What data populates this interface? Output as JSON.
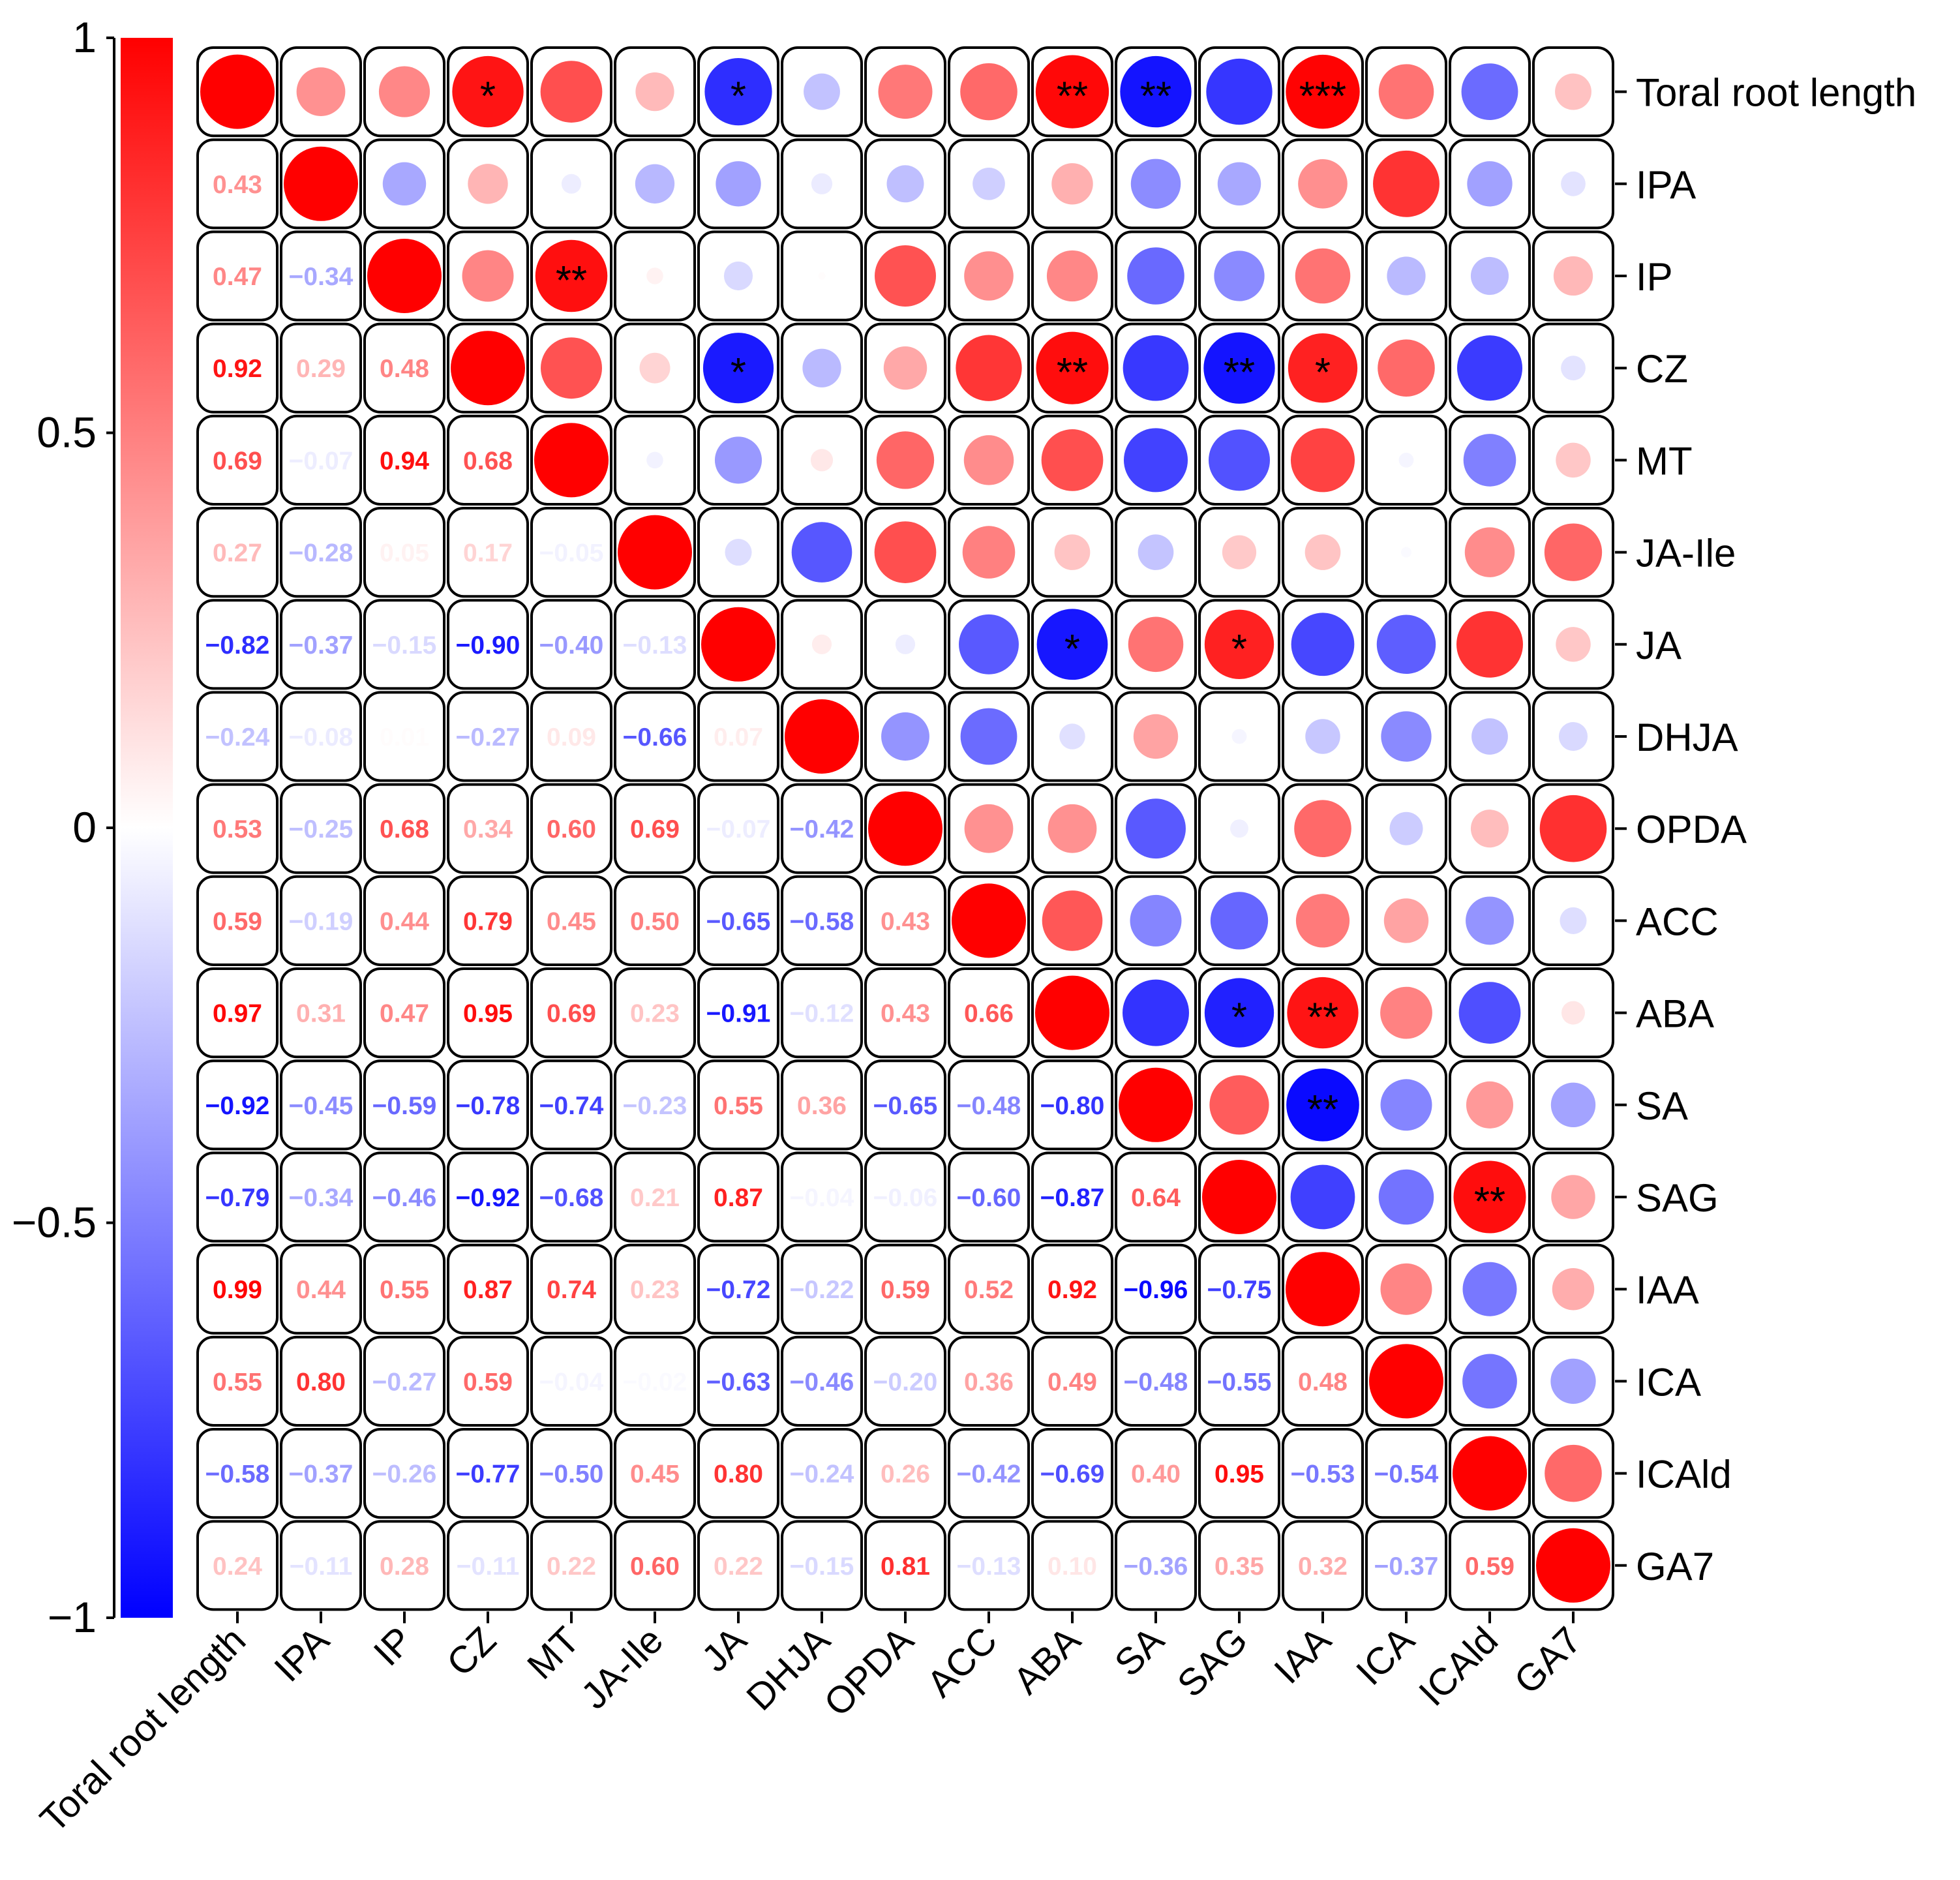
{
  "chart_data": {
    "type": "heatmap",
    "subtype": "correlogram",
    "variables": [
      "Toral root length",
      "IPA",
      "IP",
      "CZ",
      "MT",
      "JA-Ile",
      "JA",
      "DHJA",
      "OPDA",
      "ACC",
      "ABA",
      "SA",
      "SAG",
      "IAA",
      "ICA",
      "ICAld",
      "GA7"
    ],
    "lower_triangle_display": "numbers",
    "upper_triangle_display": "circles",
    "diagonal_value": 1,
    "colorbar": {
      "min": -1,
      "max": 1,
      "ticks": [
        1,
        0.5,
        0,
        -0.5,
        -1
      ],
      "tick_labels": [
        "1",
        "0.5",
        "0",
        "−0.5",
        "−1"
      ],
      "colors": {
        "low": "#0000ff",
        "mid": "#ffffff",
        "high": "#ff0000"
      }
    },
    "correlations": [
      {
        "row": "IPA",
        "col": "Toral root length",
        "value": 0.43,
        "label": "0.43"
      },
      {
        "row": "IP",
        "col": "Toral root length",
        "value": 0.47,
        "label": "0.47"
      },
      {
        "row": "IP",
        "col": "IPA",
        "value": -0.34,
        "label": "−0.34"
      },
      {
        "row": "CZ",
        "col": "Toral root length",
        "value": 0.92,
        "label": "0.92"
      },
      {
        "row": "CZ",
        "col": "IPA",
        "value": 0.29,
        "label": "0.29"
      },
      {
        "row": "CZ",
        "col": "IP",
        "value": 0.48,
        "label": "0.48"
      },
      {
        "row": "MT",
        "col": "Toral root length",
        "value": 0.69,
        "label": "0.69"
      },
      {
        "row": "MT",
        "col": "IPA",
        "value": -0.07,
        "label": "−0.07"
      },
      {
        "row": "MT",
        "col": "IP",
        "value": 0.94,
        "label": "0.94"
      },
      {
        "row": "MT",
        "col": "CZ",
        "value": 0.68,
        "label": "0.68"
      },
      {
        "row": "JA-Ile",
        "col": "Toral root length",
        "value": 0.27,
        "label": "0.27"
      },
      {
        "row": "JA-Ile",
        "col": "IPA",
        "value": -0.28,
        "label": "−0.28"
      },
      {
        "row": "JA-Ile",
        "col": "IP",
        "value": 0.05,
        "label": "0.05"
      },
      {
        "row": "JA-Ile",
        "col": "CZ",
        "value": 0.17,
        "label": "0.17"
      },
      {
        "row": "JA-Ile",
        "col": "MT",
        "value": -0.05,
        "label": "−0.05"
      },
      {
        "row": "JA",
        "col": "Toral root length",
        "value": -0.82,
        "label": "−0.82"
      },
      {
        "row": "JA",
        "col": "IPA",
        "value": -0.37,
        "label": "−0.37"
      },
      {
        "row": "JA",
        "col": "IP",
        "value": -0.15,
        "label": "−0.15"
      },
      {
        "row": "JA",
        "col": "CZ",
        "value": -0.9,
        "label": "−0.90"
      },
      {
        "row": "JA",
        "col": "MT",
        "value": -0.4,
        "label": "−0.40"
      },
      {
        "row": "JA",
        "col": "JA-Ile",
        "value": -0.13,
        "label": "−0.13"
      },
      {
        "row": "DHJA",
        "col": "Toral root length",
        "value": -0.24,
        "label": "−0.24"
      },
      {
        "row": "DHJA",
        "col": "IPA",
        "value": -0.08,
        "label": "−0.08"
      },
      {
        "row": "DHJA",
        "col": "IP",
        "value": 0.01,
        "label": "0.01"
      },
      {
        "row": "DHJA",
        "col": "CZ",
        "value": -0.27,
        "label": "−0.27"
      },
      {
        "row": "DHJA",
        "col": "MT",
        "value": 0.09,
        "label": "0.09"
      },
      {
        "row": "DHJA",
        "col": "JA-Ile",
        "value": -0.66,
        "label": "−0.66"
      },
      {
        "row": "DHJA",
        "col": "JA",
        "value": 0.07,
        "label": "0.07"
      },
      {
        "row": "OPDA",
        "col": "Toral root length",
        "value": 0.53,
        "label": "0.53"
      },
      {
        "row": "OPDA",
        "col": "IPA",
        "value": -0.25,
        "label": "−0.25"
      },
      {
        "row": "OPDA",
        "col": "IP",
        "value": 0.68,
        "label": "0.68"
      },
      {
        "row": "OPDA",
        "col": "CZ",
        "value": 0.34,
        "label": "0.34"
      },
      {
        "row": "OPDA",
        "col": "MT",
        "value": 0.6,
        "label": "0.60"
      },
      {
        "row": "OPDA",
        "col": "JA-Ile",
        "value": 0.69,
        "label": "0.69"
      },
      {
        "row": "OPDA",
        "col": "JA",
        "value": -0.07,
        "label": "−0.07"
      },
      {
        "row": "OPDA",
        "col": "DHJA",
        "value": -0.42,
        "label": "−0.42"
      },
      {
        "row": "ACC",
        "col": "Toral root length",
        "value": 0.59,
        "label": "0.59"
      },
      {
        "row": "ACC",
        "col": "IPA",
        "value": -0.19,
        "label": "−0.19"
      },
      {
        "row": "ACC",
        "col": "IP",
        "value": 0.44,
        "label": "0.44"
      },
      {
        "row": "ACC",
        "col": "CZ",
        "value": 0.79,
        "label": "0.79"
      },
      {
        "row": "ACC",
        "col": "MT",
        "value": 0.45,
        "label": "0.45"
      },
      {
        "row": "ACC",
        "col": "JA-Ile",
        "value": 0.5,
        "label": "0.50"
      },
      {
        "row": "ACC",
        "col": "JA",
        "value": -0.65,
        "label": "−0.65"
      },
      {
        "row": "ACC",
        "col": "DHJA",
        "value": -0.58,
        "label": "−0.58"
      },
      {
        "row": "ACC",
        "col": "OPDA",
        "value": 0.43,
        "label": "0.43"
      },
      {
        "row": "ABA",
        "col": "Toral root length",
        "value": 0.97,
        "label": "0.97"
      },
      {
        "row": "ABA",
        "col": "IPA",
        "value": 0.31,
        "label": "0.31"
      },
      {
        "row": "ABA",
        "col": "IP",
        "value": 0.47,
        "label": "0.47"
      },
      {
        "row": "ABA",
        "col": "CZ",
        "value": 0.95,
        "label": "0.95"
      },
      {
        "row": "ABA",
        "col": "MT",
        "value": 0.69,
        "label": "0.69"
      },
      {
        "row": "ABA",
        "col": "JA-Ile",
        "value": 0.23,
        "label": "0.23"
      },
      {
        "row": "ABA",
        "col": "JA",
        "value": -0.91,
        "label": "−0.91"
      },
      {
        "row": "ABA",
        "col": "DHJA",
        "value": -0.12,
        "label": "−0.12"
      },
      {
        "row": "ABA",
        "col": "OPDA",
        "value": 0.43,
        "label": "0.43"
      },
      {
        "row": "ABA",
        "col": "ACC",
        "value": 0.66,
        "label": "0.66"
      },
      {
        "row": "SA",
        "col": "Toral root length",
        "value": -0.92,
        "label": "−0.92"
      },
      {
        "row": "SA",
        "col": "IPA",
        "value": -0.45,
        "label": "−0.45"
      },
      {
        "row": "SA",
        "col": "IP",
        "value": -0.59,
        "label": "−0.59"
      },
      {
        "row": "SA",
        "col": "CZ",
        "value": -0.78,
        "label": "−0.78"
      },
      {
        "row": "SA",
        "col": "MT",
        "value": -0.74,
        "label": "−0.74"
      },
      {
        "row": "SA",
        "col": "JA-Ile",
        "value": -0.23,
        "label": "−0.23"
      },
      {
        "row": "SA",
        "col": "JA",
        "value": 0.55,
        "label": "0.55"
      },
      {
        "row": "SA",
        "col": "DHJA",
        "value": 0.36,
        "label": "0.36"
      },
      {
        "row": "SA",
        "col": "OPDA",
        "value": -0.65,
        "label": "−0.65"
      },
      {
        "row": "SA",
        "col": "ACC",
        "value": -0.48,
        "label": "−0.48"
      },
      {
        "row": "SA",
        "col": "ABA",
        "value": -0.8,
        "label": "−0.80"
      },
      {
        "row": "SAG",
        "col": "Toral root length",
        "value": -0.79,
        "label": "−0.79"
      },
      {
        "row": "SAG",
        "col": "IPA",
        "value": -0.34,
        "label": "−0.34"
      },
      {
        "row": "SAG",
        "col": "IP",
        "value": -0.46,
        "label": "−0.46"
      },
      {
        "row": "SAG",
        "col": "CZ",
        "value": -0.92,
        "label": "−0.92"
      },
      {
        "row": "SAG",
        "col": "MT",
        "value": -0.68,
        "label": "−0.68"
      },
      {
        "row": "SAG",
        "col": "JA-Ile",
        "value": 0.21,
        "label": "0.21"
      },
      {
        "row": "SAG",
        "col": "JA",
        "value": 0.87,
        "label": "0.87"
      },
      {
        "row": "SAG",
        "col": "DHJA",
        "value": -0.04,
        "label": "−0.04"
      },
      {
        "row": "SAG",
        "col": "OPDA",
        "value": -0.06,
        "label": "−0.06"
      },
      {
        "row": "SAG",
        "col": "ACC",
        "value": -0.6,
        "label": "−0.60"
      },
      {
        "row": "SAG",
        "col": "ABA",
        "value": -0.87,
        "label": "−0.87"
      },
      {
        "row": "SAG",
        "col": "SA",
        "value": 0.64,
        "label": "0.64"
      },
      {
        "row": "IAA",
        "col": "Toral root length",
        "value": 0.99,
        "label": "0.99"
      },
      {
        "row": "IAA",
        "col": "IPA",
        "value": 0.44,
        "label": "0.44"
      },
      {
        "row": "IAA",
        "col": "IP",
        "value": 0.55,
        "label": "0.55"
      },
      {
        "row": "IAA",
        "col": "CZ",
        "value": 0.87,
        "label": "0.87"
      },
      {
        "row": "IAA",
        "col": "MT",
        "value": 0.74,
        "label": "0.74"
      },
      {
        "row": "IAA",
        "col": "JA-Ile",
        "value": 0.23,
        "label": "0.23"
      },
      {
        "row": "IAA",
        "col": "JA",
        "value": -0.72,
        "label": "−0.72"
      },
      {
        "row": "IAA",
        "col": "DHJA",
        "value": -0.22,
        "label": "−0.22"
      },
      {
        "row": "IAA",
        "col": "OPDA",
        "value": 0.59,
        "label": "0.59"
      },
      {
        "row": "IAA",
        "col": "ACC",
        "value": 0.52,
        "label": "0.52"
      },
      {
        "row": "IAA",
        "col": "ABA",
        "value": 0.92,
        "label": "0.92"
      },
      {
        "row": "IAA",
        "col": "SA",
        "value": -0.96,
        "label": "−0.96"
      },
      {
        "row": "IAA",
        "col": "SAG",
        "value": -0.75,
        "label": "−0.75"
      },
      {
        "row": "ICA",
        "col": "Toral root length",
        "value": 0.55,
        "label": "0.55"
      },
      {
        "row": "ICA",
        "col": "IPA",
        "value": 0.8,
        "label": "0.80"
      },
      {
        "row": "ICA",
        "col": "IP",
        "value": -0.27,
        "label": "−0.27"
      },
      {
        "row": "ICA",
        "col": "CZ",
        "value": 0.59,
        "label": "0.59"
      },
      {
        "row": "ICA",
        "col": "MT",
        "value": -0.04,
        "label": "−0.04"
      },
      {
        "row": "ICA",
        "col": "JA-Ile",
        "value": -0.02,
        "label": "−0.02"
      },
      {
        "row": "ICA",
        "col": "JA",
        "value": -0.63,
        "label": "−0.63"
      },
      {
        "row": "ICA",
        "col": "DHJA",
        "value": -0.46,
        "label": "−0.46"
      },
      {
        "row": "ICA",
        "col": "OPDA",
        "value": -0.2,
        "label": "−0.20"
      },
      {
        "row": "ICA",
        "col": "ACC",
        "value": 0.36,
        "label": "0.36"
      },
      {
        "row": "ICA",
        "col": "ABA",
        "value": 0.49,
        "label": "0.49"
      },
      {
        "row": "ICA",
        "col": "SA",
        "value": -0.48,
        "label": "−0.48"
      },
      {
        "row": "ICA",
        "col": "SAG",
        "value": -0.55,
        "label": "−0.55"
      },
      {
        "row": "ICA",
        "col": "IAA",
        "value": 0.48,
        "label": "0.48"
      },
      {
        "row": "ICAld",
        "col": "Toral root length",
        "value": -0.58,
        "label": "−0.58"
      },
      {
        "row": "ICAld",
        "col": "IPA",
        "value": -0.37,
        "label": "−0.37"
      },
      {
        "row": "ICAld",
        "col": "IP",
        "value": -0.26,
        "label": "−0.26"
      },
      {
        "row": "ICAld",
        "col": "CZ",
        "value": -0.77,
        "label": "−0.77"
      },
      {
        "row": "ICAld",
        "col": "MT",
        "value": -0.5,
        "label": "−0.50"
      },
      {
        "row": "ICAld",
        "col": "JA-Ile",
        "value": 0.45,
        "label": "0.45"
      },
      {
        "row": "ICAld",
        "col": "JA",
        "value": 0.8,
        "label": "0.80"
      },
      {
        "row": "ICAld",
        "col": "DHJA",
        "value": -0.24,
        "label": "−0.24"
      },
      {
        "row": "ICAld",
        "col": "OPDA",
        "value": 0.26,
        "label": "0.26"
      },
      {
        "row": "ICAld",
        "col": "ACC",
        "value": -0.42,
        "label": "−0.42"
      },
      {
        "row": "ICAld",
        "col": "ABA",
        "value": -0.69,
        "label": "−0.69"
      },
      {
        "row": "ICAld",
        "col": "SA",
        "value": 0.4,
        "label": "0.40"
      },
      {
        "row": "ICAld",
        "col": "SAG",
        "value": 0.95,
        "label": "0.95"
      },
      {
        "row": "ICAld",
        "col": "IAA",
        "value": -0.53,
        "label": "−0.53"
      },
      {
        "row": "ICAld",
        "col": "ICA",
        "value": -0.54,
        "label": "−0.54"
      },
      {
        "row": "GA7",
        "col": "Toral root length",
        "value": 0.24,
        "label": "0.24"
      },
      {
        "row": "GA7",
        "col": "IPA",
        "value": -0.11,
        "label": "−0.11"
      },
      {
        "row": "GA7",
        "col": "IP",
        "value": 0.28,
        "label": "0.28"
      },
      {
        "row": "GA7",
        "col": "CZ",
        "value": -0.11,
        "label": "−0.11"
      },
      {
        "row": "GA7",
        "col": "MT",
        "value": 0.22,
        "label": "0.22"
      },
      {
        "row": "GA7",
        "col": "JA-Ile",
        "value": 0.6,
        "label": "0.60"
      },
      {
        "row": "GA7",
        "col": "JA",
        "value": 0.22,
        "label": "0.22"
      },
      {
        "row": "GA7",
        "col": "DHJA",
        "value": -0.15,
        "label": "−0.15"
      },
      {
        "row": "GA7",
        "col": "OPDA",
        "value": 0.81,
        "label": "0.81"
      },
      {
        "row": "GA7",
        "col": "ACC",
        "value": -0.13,
        "label": "−0.13"
      },
      {
        "row": "GA7",
        "col": "ABA",
        "value": 0.1,
        "label": "0.10"
      },
      {
        "row": "GA7",
        "col": "SA",
        "value": -0.36,
        "label": "−0.36"
      },
      {
        "row": "GA7",
        "col": "SAG",
        "value": 0.35,
        "label": "0.35"
      },
      {
        "row": "GA7",
        "col": "IAA",
        "value": 0.32,
        "label": "0.32"
      },
      {
        "row": "GA7",
        "col": "ICA",
        "value": -0.37,
        "label": "−0.37"
      },
      {
        "row": "GA7",
        "col": "ICAld",
        "value": 0.59,
        "label": "0.59"
      }
    ],
    "significance": [
      {
        "row": "Toral root length",
        "col": "CZ",
        "stars": "*"
      },
      {
        "row": "Toral root length",
        "col": "JA",
        "stars": "*"
      },
      {
        "row": "Toral root length",
        "col": "ABA",
        "stars": "**"
      },
      {
        "row": "Toral root length",
        "col": "SA",
        "stars": "**"
      },
      {
        "row": "Toral root length",
        "col": "IAA",
        "stars": "***"
      },
      {
        "row": "IP",
        "col": "MT",
        "stars": "**"
      },
      {
        "row": "CZ",
        "col": "JA",
        "stars": "*"
      },
      {
        "row": "CZ",
        "col": "ABA",
        "stars": "**"
      },
      {
        "row": "CZ",
        "col": "SAG",
        "stars": "**"
      },
      {
        "row": "CZ",
        "col": "IAA",
        "stars": "*"
      },
      {
        "row": "JA",
        "col": "ABA",
        "stars": "*"
      },
      {
        "row": "JA",
        "col": "SAG",
        "stars": "*"
      },
      {
        "row": "ABA",
        "col": "SAG",
        "stars": "*"
      },
      {
        "row": "ABA",
        "col": "IAA",
        "stars": "**"
      },
      {
        "row": "SA",
        "col": "IAA",
        "stars": "**"
      },
      {
        "row": "SAG",
        "col": "ICAld",
        "stars": "**"
      }
    ]
  }
}
